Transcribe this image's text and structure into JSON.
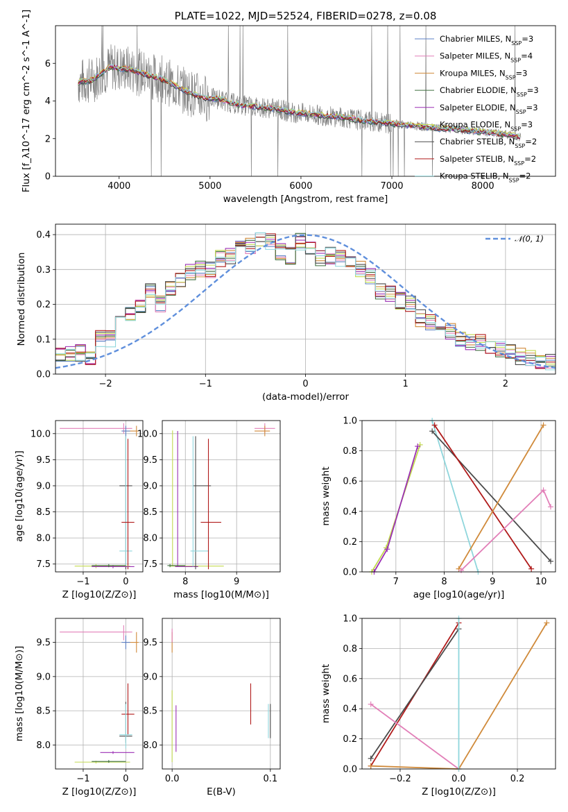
{
  "colors": {
    "Chabrier MILES": "#5b7fc4",
    "Salpeter MILES": "#e27fb8",
    "Kroupa MILES": "#d08a3a",
    "Chabrier ELODIE": "#3f6f3f",
    "Salpeter ELODIE": "#9b2fb4",
    "Kroupa ELODIE": "#c2d94f",
    "Chabrier STELIB": "#4a4a4a",
    "Salpeter STELIB": "#b01a1a",
    "Kroupa STELIB": "#8fd6dc",
    "data": "#808080",
    "normal": "#5f8fdc"
  },
  "chart_data": [
    {
      "type": "line",
      "title": "PLATE=1022, MJD=52524, FIBERID=0278, z=0.08",
      "xlabel": "wavelength [Angstrom, rest frame]",
      "ylabel": "Flux [f_λ10^-17 erg cm^-2 s^-1 A^-1]",
      "xlim": [
        3300,
        8800
      ],
      "ylim": [
        0,
        8
      ],
      "xticks": [
        "4000",
        "5000",
        "6000",
        "7000",
        "8000"
      ],
      "yticks": [
        "0",
        "2",
        "4",
        "6"
      ],
      "legend_position": "top-right",
      "legend": [
        {
          "model": "Chabrier MILES",
          "n": "3"
        },
        {
          "model": "Salpeter MILES",
          "n": "4"
        },
        {
          "model": "Kroupa MILES",
          "n": "3"
        },
        {
          "model": "Chabrier ELODIE",
          "n": "3"
        },
        {
          "model": "Salpeter ELODIE",
          "n": "3"
        },
        {
          "model": "Kroupa ELODIE",
          "n": "3"
        },
        {
          "model": "Chabrier STELIB",
          "n": "2"
        },
        {
          "model": "Salpeter STELIB",
          "n": "2"
        },
        {
          "model": "Kroupa STELIB",
          "n": "2"
        }
      ],
      "continuum_x": [
        3550,
        3700,
        3900,
        4100,
        4300,
        4500,
        4700,
        4900,
        5100,
        5300,
        5500,
        5700,
        5900,
        6100,
        6300,
        6500,
        6700,
        6900,
        7100,
        7300,
        7500,
        7700,
        7900,
        8100,
        8300,
        8400
      ],
      "continuum_y": [
        5.0,
        5.1,
        5.8,
        5.7,
        5.4,
        5.1,
        4.6,
        4.2,
        4.1,
        3.8,
        3.7,
        3.6,
        3.4,
        3.3,
        3.2,
        3.1,
        2.95,
        2.85,
        2.75,
        2.65,
        2.55,
        2.5,
        2.4,
        2.3,
        2.2,
        2.1
      ]
    },
    {
      "type": "line",
      "xlabel": "(data-model)/error",
      "ylabel": "Normed distribution",
      "xlim": [
        -2.5,
        2.5
      ],
      "ylim": [
        0,
        0.43
      ],
      "xticks": [
        "−2",
        "−1",
        "0",
        "1",
        "2"
      ],
      "yticks": [
        "0.0",
        "0.1",
        "0.2",
        "0.3",
        "0.4"
      ],
      "legend_position": "top-right",
      "reference": "N(0,1)",
      "hist_centers": [
        -2.45,
        -2.35,
        -2.25,
        -2.15,
        -2.05,
        -1.95,
        -1.85,
        -1.75,
        -1.65,
        -1.55,
        -1.45,
        -1.35,
        -1.25,
        -1.15,
        -1.05,
        -0.95,
        -0.85,
        -0.75,
        -0.65,
        -0.55,
        -0.45,
        -0.35,
        -0.25,
        -0.15,
        -0.05,
        0.05,
        0.15,
        0.25,
        0.35,
        0.45,
        0.55,
        0.65,
        0.75,
        0.85,
        0.95,
        1.05,
        1.15,
        1.25,
        1.35,
        1.45,
        1.55,
        1.65,
        1.75,
        1.85,
        1.95,
        2.05,
        2.15,
        2.25,
        2.35,
        2.45
      ],
      "hist_values": [
        0.05,
        0.055,
        0.06,
        0.05,
        0.1,
        0.1,
        0.15,
        0.17,
        0.2,
        0.24,
        0.2,
        0.25,
        0.27,
        0.29,
        0.3,
        0.3,
        0.33,
        0.34,
        0.36,
        0.37,
        0.39,
        0.38,
        0.35,
        0.34,
        0.38,
        0.36,
        0.33,
        0.34,
        0.33,
        0.32,
        0.3,
        0.28,
        0.24,
        0.23,
        0.21,
        0.2,
        0.16,
        0.15,
        0.13,
        0.12,
        0.1,
        0.09,
        0.09,
        0.08,
        0.07,
        0.06,
        0.05,
        0.045,
        0.04,
        0.035
      ]
    },
    {
      "type": "scatter",
      "xlabel": "Z [log10(Z/Z⊙)]",
      "ylabel": "age  [log10(age/yr)]",
      "xlim": [
        -1.65,
        0.4
      ],
      "ylim": [
        7.35,
        10.25
      ],
      "xticks": [
        "−1",
        "0"
      ],
      "yticks": [
        "7.5",
        "8.0",
        "8.5",
        "9.0",
        "9.5",
        "10.0"
      ]
    },
    {
      "type": "scatter",
      "xlabel": "mass [log10(M/M⊙)]",
      "xlim": [
        7.55,
        9.85
      ],
      "ylim": [
        7.35,
        10.25
      ],
      "xticks": [
        "8",
        "9"
      ],
      "yticks": [
        "7.5",
        "8.0",
        "8.5",
        "9.0",
        "9.5",
        "10.0"
      ]
    },
    {
      "type": "line",
      "xlabel": "age  [log10(age/yr)]",
      "ylabel": "mass weight",
      "xlim": [
        6.3,
        10.3
      ],
      "ylim": [
        0,
        1.0
      ],
      "xticks": [
        "7",
        "8",
        "9",
        "10"
      ],
      "yticks": [
        "0.0",
        "0.2",
        "0.4",
        "0.6",
        "0.8",
        "1.0"
      ],
      "series": [
        {
          "model": "Kroupa ELODIE",
          "x": [
            6.5,
            6.8,
            7.5
          ],
          "y": [
            0.0,
            0.16,
            0.84
          ]
        },
        {
          "model": "Salpeter ELODIE",
          "x": [
            6.55,
            6.82,
            7.45
          ],
          "y": [
            0.0,
            0.15,
            0.83
          ]
        },
        {
          "model": "Kroupa STELIB",
          "x": [
            7.75,
            8.7
          ],
          "y": [
            1.0,
            0.0
          ]
        },
        {
          "model": "Chabrier STELIB",
          "x": [
            7.75,
            10.2
          ],
          "y": [
            0.93,
            0.07
          ]
        },
        {
          "model": "Salpeter STELIB",
          "x": [
            7.8,
            9.8
          ],
          "y": [
            0.97,
            0.02
          ]
        },
        {
          "model": "Kroupa MILES",
          "x": [
            8.3,
            10.05
          ],
          "y": [
            0.02,
            0.97
          ]
        },
        {
          "model": "Salpeter MILES",
          "x": [
            8.35,
            10.05,
            10.2
          ],
          "y": [
            0.01,
            0.54,
            0.43
          ]
        }
      ]
    },
    {
      "type": "scatter",
      "xlabel": "Z [log10(Z/Z⊙)]",
      "ylabel": "mass [log10(M/M⊙)]",
      "xlim": [
        -1.65,
        0.4
      ],
      "ylim": [
        7.65,
        9.85
      ],
      "xticks": [
        "−1",
        "0"
      ],
      "yticks": [
        "8.0",
        "8.5",
        "9.0",
        "9.5"
      ]
    },
    {
      "type": "scatter",
      "xlabel": "E(B-V)",
      "xlim": [
        -0.01,
        0.11
      ],
      "ylim": [
        7.65,
        9.85
      ],
      "xticks": [
        "0.0",
        "0.1"
      ],
      "yticks": [
        "8.0",
        "8.5",
        "9.0",
        "9.5"
      ]
    },
    {
      "type": "line",
      "xlabel": "Z [log10(Z/Z⊙)]",
      "ylabel": "mass weight",
      "xlim": [
        -0.33,
        0.33
      ],
      "ylim": [
        0,
        1.0
      ],
      "xticks": [
        "−0.2",
        "0.0",
        "0.2"
      ],
      "yticks": [
        "0.0",
        "0.2",
        "0.4",
        "0.6",
        "0.8",
        "1.0"
      ],
      "series": [
        {
          "model": "Salpeter STELIB",
          "x": [
            -0.3,
            0.0
          ],
          "y": [
            0.02,
            0.97
          ]
        },
        {
          "model": "Chabrier STELIB",
          "x": [
            -0.3,
            0.0
          ],
          "y": [
            0.07,
            0.93
          ]
        },
        {
          "model": "Salpeter MILES",
          "x": [
            -0.3,
            0.0
          ],
          "y": [
            0.43,
            0.0
          ]
        },
        {
          "model": "Kroupa MILES",
          "x": [
            -0.3,
            0.0,
            0.3
          ],
          "y": [
            0.02,
            0.0,
            0.97
          ]
        },
        {
          "model": "Kroupa STELIB",
          "x": [
            0.0,
            0.0
          ],
          "y": [
            0.0,
            1.0
          ]
        }
      ]
    }
  ]
}
